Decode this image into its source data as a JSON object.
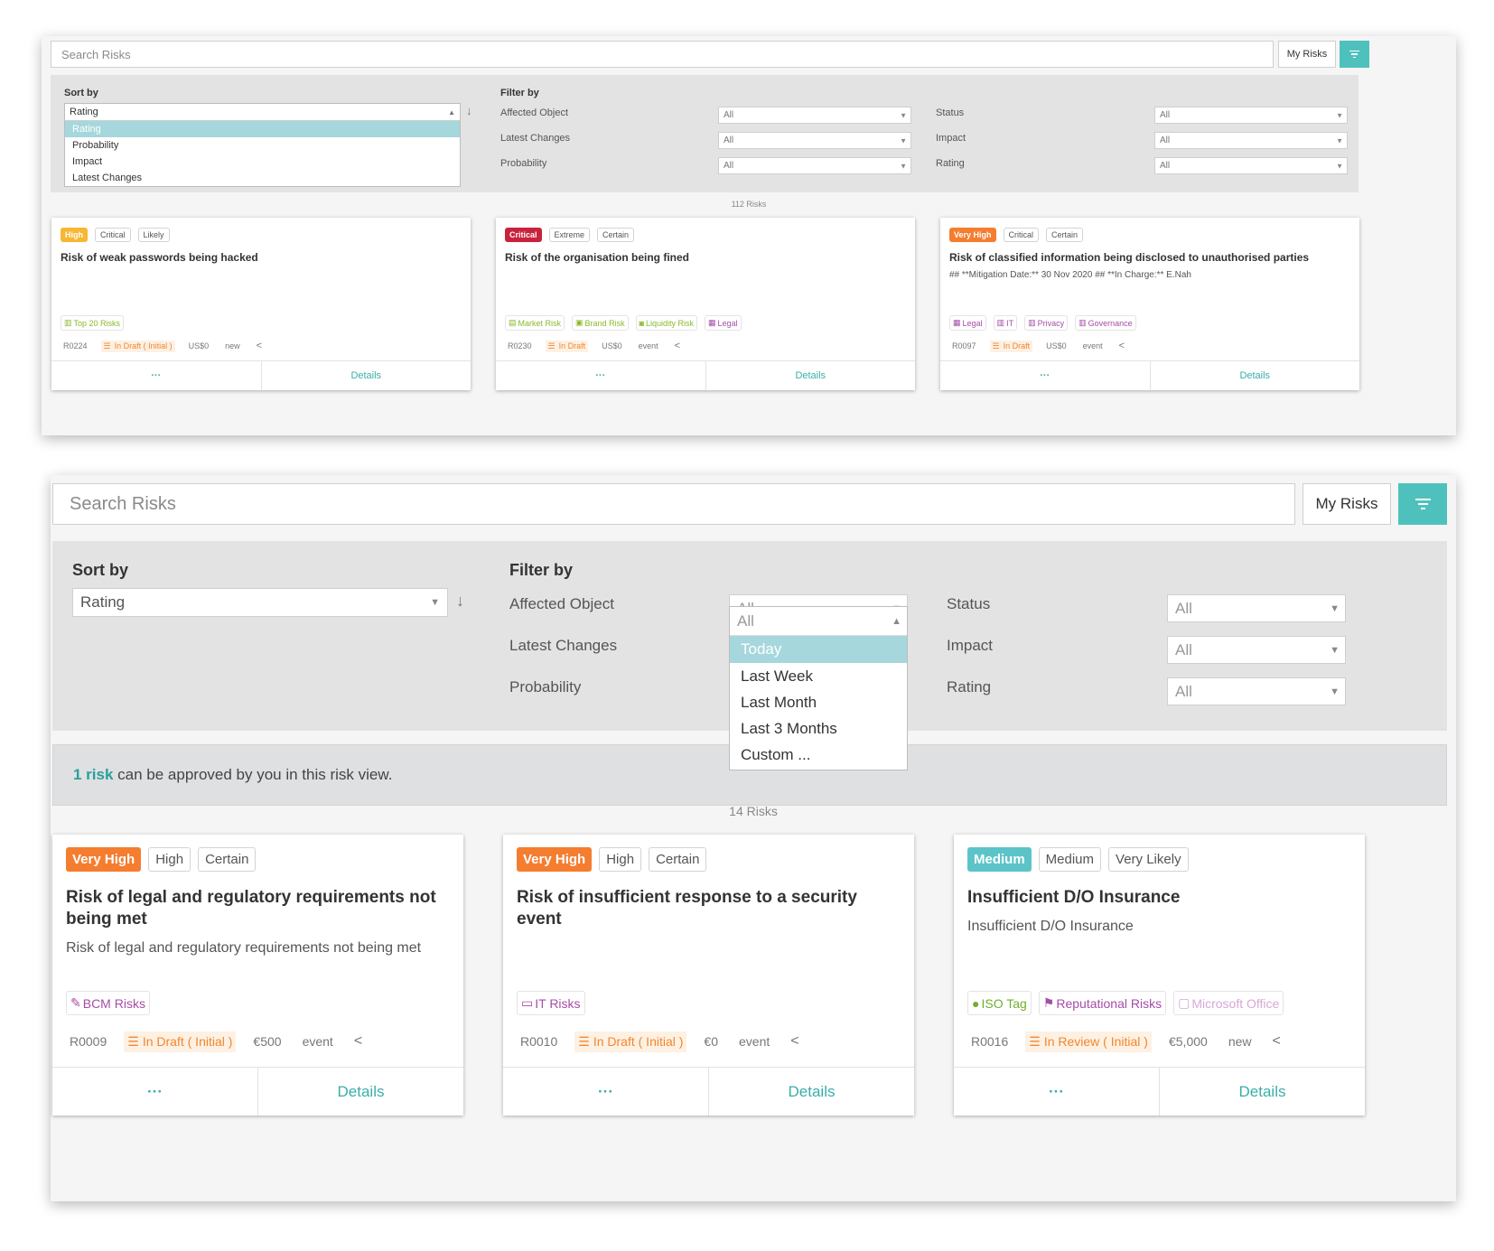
{
  "panel1": {
    "search_placeholder": "Search Risks",
    "my_risks": "My Risks",
    "sort_label": "Sort by",
    "sort_value": "Rating",
    "sort_options": [
      "Rating",
      "Probability",
      "Impact",
      "Latest Changes"
    ],
    "filter_label": "Filter by",
    "filters": {
      "affected_object": {
        "label": "Affected Object",
        "value": "All"
      },
      "latest_changes": {
        "label": "Latest Changes",
        "value": "All"
      },
      "probability": {
        "label": "Probability",
        "value": "All"
      },
      "status": {
        "label": "Status",
        "value": "All"
      },
      "impact": {
        "label": "Impact",
        "value": "All"
      },
      "rating": {
        "label": "Rating",
        "value": "All"
      }
    },
    "count": "112 Risks",
    "cards": [
      {
        "rating": "High",
        "rating_color": "#f7b733",
        "impact": "Critical",
        "probability": "Likely",
        "title": "Risk of weak passwords being hacked",
        "subtitle": "",
        "tags": [
          {
            "icon": "building-icon",
            "label": "Top 20 Risks",
            "color": "#8ab92d"
          }
        ],
        "id": "R0224",
        "status": "In Draft ( Initial )",
        "amount": "US$0",
        "type": "new",
        "more": "···",
        "details": "Details"
      },
      {
        "rating": "Critical",
        "rating_color": "#c8223c",
        "impact": "Extreme",
        "probability": "Certain",
        "title": "Risk of the organisation being fined",
        "subtitle": "",
        "tags": [
          {
            "icon": "store-icon",
            "label": "Market Risk",
            "color": "#8ab92d"
          },
          {
            "icon": "bag-icon",
            "label": "Brand Risk",
            "color": "#8ab92d"
          },
          {
            "icon": "coin-icon",
            "label": "Liquidity Risk",
            "color": "#8ab92d"
          },
          {
            "icon": "scale-icon",
            "label": "Legal",
            "color": "#a64ca6"
          }
        ],
        "id": "R0230",
        "status": "In Draft",
        "amount": "US$0",
        "type": "event",
        "more": "···",
        "details": "Details"
      },
      {
        "rating": "Very High",
        "rating_color": "#f47d30",
        "impact": "Critical",
        "probability": "Certain",
        "title": "Risk of classified information being disclosed to unauthorised parties",
        "subtitle": "## **Mitigation Date:** 30 Nov 2020 ## **In Charge:** E.Nah",
        "tags": [
          {
            "icon": "scale-icon",
            "label": "Legal",
            "color": "#a64ca6"
          },
          {
            "icon": "building-icon",
            "label": "IT",
            "color": "#a64ca6"
          },
          {
            "icon": "building-icon",
            "label": "Privacy",
            "color": "#a64ca6"
          },
          {
            "icon": "building-icon",
            "label": "Governance",
            "color": "#a64ca6"
          }
        ],
        "id": "R0097",
        "status": "In Draft",
        "amount": "US$0",
        "type": "event",
        "more": "···",
        "details": "Details"
      }
    ]
  },
  "panel2": {
    "search_placeholder": "Search Risks",
    "my_risks": "My Risks",
    "sort_label": "Sort by",
    "sort_value": "Rating",
    "filter_label": "Filter by",
    "filters": {
      "affected_object": {
        "label": "Affected Object",
        "value": "All"
      },
      "latest_changes": {
        "label": "Latest Changes",
        "value": "All"
      },
      "probability": {
        "label": "Probability"
      },
      "status": {
        "label": "Status",
        "value": "All"
      },
      "impact": {
        "label": "Impact",
        "value": "All"
      },
      "rating": {
        "label": "Rating",
        "value": "All"
      }
    },
    "latest_changes_options": [
      "Today",
      "Last Week",
      "Last Month",
      "Last 3 Months",
      "Custom ..."
    ],
    "approve": {
      "bold": "1 risk",
      "rest": " can be approved by you in this risk view."
    },
    "count": "14 Risks",
    "cards": [
      {
        "rating": "Very High",
        "rating_color": "#f47d30",
        "impact": "High",
        "probability": "Certain",
        "title": "Risk of legal and regulatory requirements not being met",
        "subtitle": "Risk of legal and regulatory requirements not being met",
        "tags": [
          {
            "icon": "wrench-icon",
            "label": "BCM Risks",
            "color": "#a64ca6"
          }
        ],
        "id": "R0009",
        "status": "In Draft ( Initial )",
        "amount": "€500",
        "type": "event",
        "more": "···",
        "details": "Details"
      },
      {
        "rating": "Very High",
        "rating_color": "#f47d30",
        "impact": "High",
        "probability": "Certain",
        "title": "Risk of insufficient response to a security event",
        "subtitle": "",
        "tags": [
          {
            "icon": "monitor-icon",
            "label": "IT Risks",
            "color": "#a64ca6"
          }
        ],
        "id": "R0010",
        "status": "In Draft ( Initial )",
        "amount": "€0",
        "type": "event",
        "more": "···",
        "details": "Details"
      },
      {
        "rating": "Medium",
        "rating_color": "#5cc4c8",
        "impact": "Medium",
        "probability": "Very Likely",
        "title": "Insufficient D/O Insurance",
        "subtitle": "Insufficient D/O Insurance",
        "tags": [
          {
            "icon": "leaf-icon",
            "label": "ISO Tag",
            "color": "#6fae2e"
          },
          {
            "icon": "flag-icon",
            "label": "Reputational Risks",
            "color": "#a64ca6"
          },
          {
            "icon": "folder-icon",
            "label": "Microsoft Office",
            "color": "#d7a8d7"
          }
        ],
        "id": "R0016",
        "status": "In Review ( Initial )",
        "amount": "€5,000",
        "type": "new",
        "more": "···",
        "details": "Details"
      }
    ]
  }
}
